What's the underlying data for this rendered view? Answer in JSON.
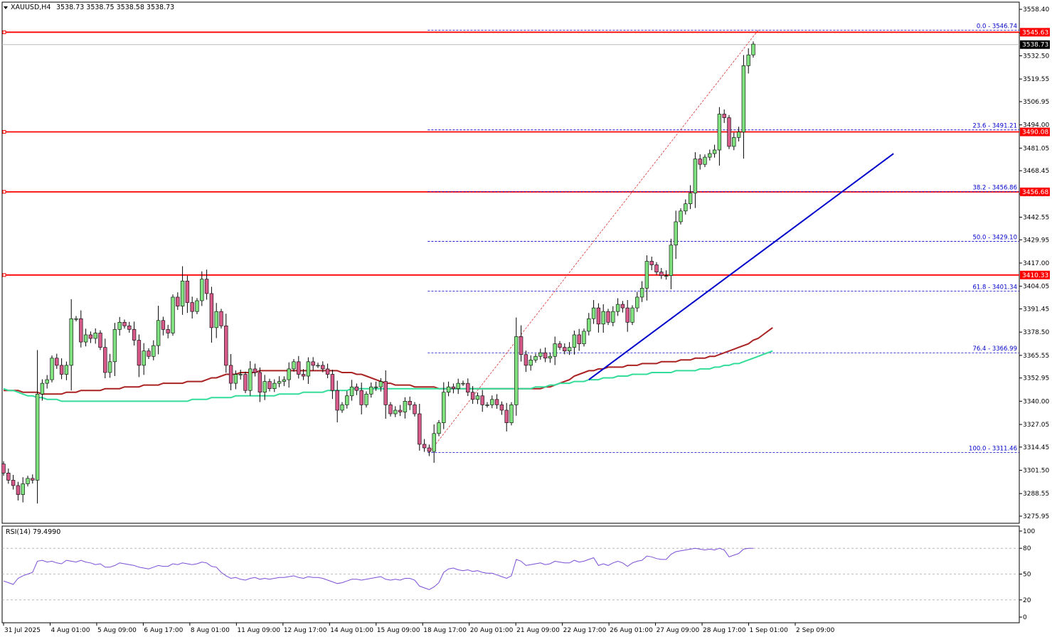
{
  "chart_data": {
    "type": "candlestick",
    "symbol": "XAUUSD,H4",
    "header_values": "3538.73 3538.75 3538.58 3538.73",
    "ylim": [
      3272,
      3562
    ],
    "price_ticks": [
      "3558.40",
      "3545.20",
      "3532.50",
      "3519.55",
      "3506.95",
      "3494.00",
      "3481.05",
      "3468.45",
      "3455.50",
      "3442.55",
      "3429.95",
      "3417.00",
      "3404.05",
      "3391.45",
      "3378.50",
      "3365.55",
      "3352.95",
      "3340.00",
      "3327.05",
      "3314.45",
      "3301.50",
      "3288.55",
      "3275.95"
    ],
    "time_labels": [
      "31 Jul 2025",
      "4 Aug 01:00",
      "5 Aug 09:00",
      "6 Aug 17:00",
      "8 Aug 01:00",
      "11 Aug 09:00",
      "12 Aug 17:00",
      "14 Aug 01:00",
      "15 Aug 09:00",
      "18 Aug 17:00",
      "20 Aug 01:00",
      "21 Aug 09:00",
      "22 Aug 17:00",
      "26 Aug 01:00",
      "27 Aug 09:00",
      "28 Aug 17:00",
      "1 Sep 01:00",
      "2 Sep 09:00"
    ],
    "current_price": 3538.73,
    "current_price_label": "3538.73",
    "horizontal_levels": [
      {
        "value": 3545.63,
        "label": "3545.63"
      },
      {
        "value": 3490.08,
        "label": "3490.08"
      },
      {
        "value": 3456.68,
        "label": "3456.68"
      },
      {
        "value": 3410.33,
        "label": "3410.33"
      }
    ],
    "fibonacci": [
      {
        "value": 3546.74,
        "label": "0.0 - 3546.74"
      },
      {
        "value": 3491.21,
        "label": "23.6 - 3491.21"
      },
      {
        "value": 3456.86,
        "label": "38.2 - 3456.86"
      },
      {
        "value": 3429.1,
        "label": "50.0 - 3429.10"
      },
      {
        "value": 3401.34,
        "label": "61.8 - 3401.34"
      },
      {
        "value": 3366.99,
        "label": "76.4 - 3366.99"
      },
      {
        "value": 3311.46,
        "label": "100.0 - 3311.46"
      }
    ],
    "close": [
      3300,
      3296,
      3293,
      3288,
      3294,
      3297,
      3296,
      3344,
      3350,
      3352,
      3364,
      3360,
      3355,
      3360,
      3386,
      3386,
      3373,
      3377,
      3375,
      3378,
      3370,
      3356,
      3362,
      3380,
      3384,
      3382,
      3380,
      3374,
      3360,
      3368,
      3365,
      3371,
      3385,
      3380,
      3378,
      3398,
      3393,
      3407,
      3395,
      3390,
      3396,
      3408,
      3400,
      3381,
      3390,
      3382,
      3360,
      3350,
      3355,
      3355,
      3346,
      3358,
      3356,
      3345,
      3351,
      3347,
      3350,
      3351,
      3352,
      3358,
      3362,
      3355,
      3354,
      3362,
      3360,
      3360,
      3358,
      3355,
      3346,
      3335,
      3338,
      3343,
      3348,
      3346,
      3338,
      3344,
      3348,
      3348,
      3351,
      3338,
      3333,
      3335,
      3334,
      3340,
      3338,
      3333,
      3316,
      3314,
      3312,
      3322,
      3328,
      3345,
      3348,
      3347,
      3350,
      3350,
      3345,
      3341,
      3343,
      3338,
      3338,
      3341,
      3338,
      3335,
      3328,
      3338,
      3376,
      3366,
      3360,
      3363,
      3365,
      3367,
      3364,
      3365,
      3372,
      3370,
      3368,
      3370,
      3377,
      3372,
      3379,
      3386,
      3392,
      3383,
      3390,
      3384,
      3390,
      3394,
      3392,
      3384,
      3392,
      3398,
      3403,
      3418,
      3416,
      3412,
      3410,
      3410,
      3427,
      3440,
      3446,
      3450,
      3456,
      3475,
      3472,
      3476,
      3478,
      3480,
      3500,
      3498,
      3482,
      3487,
      3490,
      3527,
      3533,
      3539
    ],
    "ema_red": [
      3346,
      3346,
      3346,
      3346,
      3345,
      3345,
      3345,
      3345,
      3344,
      3344,
      3344,
      3344,
      3344,
      3345,
      3345,
      3345,
      3346,
      3346,
      3346,
      3346,
      3346,
      3347,
      3347,
      3347,
      3347,
      3348,
      3348,
      3348,
      3348,
      3349,
      3349,
      3349,
      3349,
      3350,
      3350,
      3350,
      3350,
      3350,
      3351,
      3351,
      3351,
      3351,
      3352,
      3353,
      3353,
      3354,
      3355,
      3355,
      3355,
      3356,
      3356,
      3356,
      3356,
      3357,
      3357,
      3357,
      3357,
      3357,
      3357,
      3357,
      3357,
      3357,
      3357,
      3357,
      3357,
      3357,
      3357,
      3357,
      3357,
      3357,
      3356,
      3356,
      3356,
      3355,
      3355,
      3354,
      3353,
      3352,
      3351,
      3350,
      3350,
      3349,
      3349,
      3349,
      3349,
      3348,
      3348,
      3348,
      3348,
      3348,
      3347,
      3347,
      3347,
      3347,
      3347,
      3347,
      3347,
      3347,
      3347,
      3347,
      3347,
      3347,
      3347,
      3347,
      3347,
      3347,
      3347,
      3347,
      3347,
      3347,
      3347,
      3347,
      3348,
      3348,
      3349,
      3350,
      3351,
      3352,
      3354,
      3355,
      3356,
      3357,
      3357,
      3358,
      3358,
      3359,
      3359,
      3359,
      3359,
      3360,
      3360,
      3360,
      3361,
      3361,
      3361,
      3361,
      3362,
      3362,
      3362,
      3362,
      3363,
      3363,
      3363,
      3364,
      3364,
      3364,
      3365,
      3365,
      3366,
      3367,
      3368,
      3369,
      3370,
      3371,
      3372,
      3374,
      3375,
      3377,
      3379,
      3381
    ],
    "ema_green": [
      3347,
      3346,
      3346,
      3345,
      3344,
      3343,
      3343,
      3342,
      3342,
      3341,
      3341,
      3341,
      3340,
      3340,
      3340,
      3340,
      3340,
      3340,
      3340,
      3340,
      3340,
      3340,
      3340,
      3340,
      3340,
      3340,
      3340,
      3340,
      3340,
      3340,
      3340,
      3340,
      3340,
      3340,
      3340,
      3340,
      3340,
      3340,
      3340,
      3341,
      3341,
      3341,
      3341,
      3342,
      3342,
      3342,
      3342,
      3342,
      3343,
      3343,
      3343,
      3343,
      3343,
      3343,
      3343,
      3343,
      3343,
      3344,
      3344,
      3344,
      3344,
      3344,
      3345,
      3345,
      3345,
      3345,
      3345,
      3346,
      3346,
      3346,
      3346,
      3346,
      3347,
      3347,
      3347,
      3347,
      3347,
      3347,
      3347,
      3347,
      3347,
      3347,
      3347,
      3347,
      3347,
      3347,
      3347,
      3347,
      3347,
      3347,
      3347,
      3347,
      3347,
      3347,
      3347,
      3347,
      3347,
      3347,
      3347,
      3347,
      3347,
      3347,
      3347,
      3347,
      3347,
      3347,
      3347,
      3347,
      3347,
      3347,
      3348,
      3348,
      3348,
      3349,
      3349,
      3350,
      3350,
      3350,
      3351,
      3351,
      3351,
      3352,
      3352,
      3352,
      3353,
      3353,
      3353,
      3354,
      3354,
      3354,
      3355,
      3355,
      3355,
      3355,
      3356,
      3356,
      3356,
      3356,
      3356,
      3357,
      3357,
      3357,
      3357,
      3357,
      3358,
      3358,
      3358,
      3359,
      3359,
      3360,
      3360,
      3361,
      3361,
      3362,
      3363,
      3364,
      3365,
      3366,
      3367,
      3368
    ],
    "rsi_label": "RSI(14) 79.4990",
    "rsi_ticks": [
      "100",
      "80",
      "50",
      "20",
      "0"
    ],
    "rsi_ylim": [
      0,
      100
    ],
    "rsi": [
      42,
      40,
      38,
      45,
      48,
      50,
      52,
      65,
      66,
      64,
      65,
      63,
      62,
      66,
      65,
      64,
      66,
      64,
      63,
      61,
      62,
      58,
      58,
      60,
      63,
      62,
      61,
      60,
      58,
      57,
      56,
      58,
      60,
      59,
      59,
      62,
      61,
      63,
      62,
      61,
      62,
      64,
      63,
      59,
      58,
      52,
      48,
      45,
      46,
      44,
      43,
      45,
      46,
      44,
      45,
      44,
      45,
      46,
      46,
      47,
      48,
      46,
      45,
      47,
      46,
      46,
      45,
      43,
      41,
      39,
      40,
      42,
      44,
      44,
      43,
      44,
      45,
      46,
      47,
      44,
      43,
      44,
      43,
      45,
      45,
      43,
      36,
      34,
      32,
      35,
      40,
      52,
      56,
      57,
      55,
      54,
      55,
      53,
      54,
      52,
      51,
      51,
      49,
      47,
      45,
      48,
      67,
      65,
      60,
      61,
      62,
      63,
      61,
      62,
      65,
      64,
      63,
      63,
      66,
      64,
      65,
      67,
      69,
      60,
      62,
      60,
      63,
      65,
      63,
      59,
      63,
      65,
      66,
      71,
      70,
      68,
      67,
      67,
      73,
      76,
      77,
      78,
      79,
      80,
      79,
      78,
      79,
      78,
      80,
      78,
      70,
      72,
      74,
      79,
      80,
      80
    ],
    "fib_anchor": {
      "low_index": 88,
      "high_index": 156
    }
  },
  "colors": {
    "bull": "#7fe27f",
    "bear": "#d65a8a",
    "wick": "#000000",
    "level": "#ff0000",
    "fib": "#0000cc",
    "trendline": "#0000cc",
    "ema_red": "#aa2222",
    "ema_green": "#33dd99"
  }
}
